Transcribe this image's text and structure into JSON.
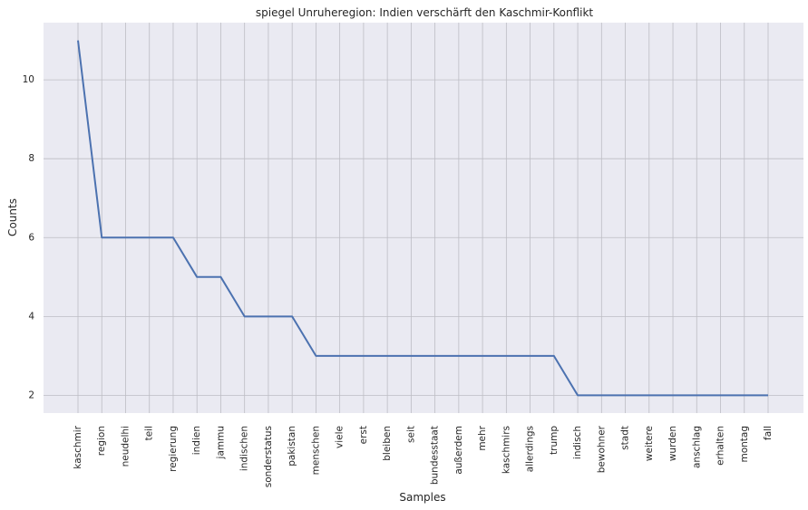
{
  "chart_data": {
    "type": "line",
    "title": "spiegel Unruheregion: Indien verschärft den Kaschmir-Konflikt",
    "xlabel": "Samples",
    "ylabel": "Counts",
    "categories": [
      "kaschmir",
      "region",
      "neudelhi",
      "teil",
      "regierung",
      "indien",
      "jammu",
      "indischen",
      "sonderstatus",
      "pakistan",
      "menschen",
      "viele",
      "erst",
      "bleiben",
      "seit",
      "bundesstaat",
      "außerdem",
      "mehr",
      "kaschmirs",
      "allerdings",
      "trump",
      "indisch",
      "bewohner",
      "stadt",
      "weitere",
      "wurden",
      "anschlag",
      "erhalten",
      "montag",
      "fall"
    ],
    "values": [
      11,
      6,
      6,
      6,
      6,
      5,
      5,
      4,
      4,
      4,
      3,
      3,
      3,
      3,
      3,
      3,
      3,
      3,
      3,
      3,
      3,
      2,
      2,
      2,
      2,
      2,
      2,
      2,
      2,
      2
    ],
    "yticks": [
      2,
      4,
      6,
      8,
      10
    ],
    "ylim": [
      1.55,
      11.45
    ],
    "grid": true,
    "colors": {
      "line": "#4c72b0",
      "background": "#eaeaf2",
      "grid": "#bdbdc4"
    }
  }
}
